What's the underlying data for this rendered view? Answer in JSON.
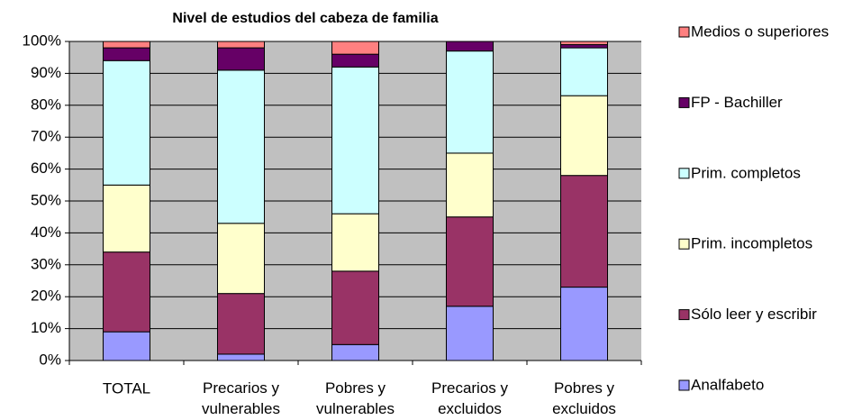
{
  "chart_data": {
    "type": "stacked_bar_100",
    "title": "Nivel de estudios del cabeza de familia",
    "categories": [
      "TOTAL",
      "Precarios y\nvulnerables",
      "Pobres y\nvulnerables",
      "Precarios y\nexcluidos",
      "Pobres y\nexcluidos"
    ],
    "series": [
      {
        "name": "Analfabeto",
        "color": "#9999FF",
        "values": [
          9,
          2,
          5,
          17,
          23
        ]
      },
      {
        "name": "Sólo leer y escribir",
        "color": "#993366",
        "values": [
          25,
          19,
          23,
          28,
          35
        ]
      },
      {
        "name": "Prim. incompletos",
        "color": "#FFFFCC",
        "values": [
          21,
          22,
          18,
          20,
          25
        ]
      },
      {
        "name": "Prim. completos",
        "color": "#CCFFFF",
        "values": [
          39,
          48,
          46,
          32,
          15
        ]
      },
      {
        "name": "FP - Bachiller",
        "color": "#660066",
        "values": [
          4,
          7,
          4,
          3,
          1
        ]
      },
      {
        "name": "Medios o superiores",
        "color": "#FF8080",
        "values": [
          2,
          2,
          4,
          0,
          1
        ]
      }
    ],
    "ylim": [
      0,
      100
    ],
    "yticks": [
      {
        "value": 0,
        "label": "0%"
      },
      {
        "value": 10,
        "label": "10%"
      },
      {
        "value": 20,
        "label": "20%"
      },
      {
        "value": 30,
        "label": "30%"
      },
      {
        "value": 40,
        "label": "40%"
      },
      {
        "value": 50,
        "label": "50%"
      },
      {
        "value": 60,
        "label": "60%"
      },
      {
        "value": 70,
        "label": "70%"
      },
      {
        "value": 80,
        "label": "80%"
      },
      {
        "value": 90,
        "label": "90%"
      },
      {
        "value": 100,
        "label": "100%"
      }
    ],
    "grid": true,
    "legend": "right"
  }
}
